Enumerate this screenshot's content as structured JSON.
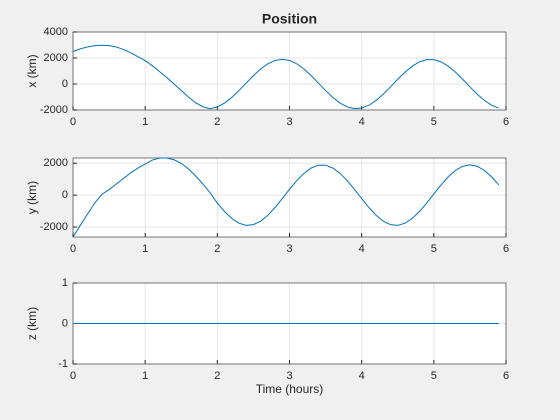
{
  "chart_data": [
    {
      "type": "line",
      "title": "Position",
      "ylabel": "x (km)",
      "color": "#0072bd",
      "grid": true,
      "xlim": [
        0,
        6
      ],
      "xticks": [
        0,
        1,
        2,
        3,
        4,
        5,
        6
      ],
      "ylim": [
        -2000,
        4000
      ],
      "yticks": [
        -2000,
        0,
        2000,
        4000
      ],
      "x": [
        0,
        0.1,
        0.2,
        0.3,
        0.4,
        0.5,
        0.6,
        0.7,
        0.8,
        0.9,
        1,
        1.1,
        1.2,
        1.3,
        1.4,
        1.5,
        1.6,
        1.7,
        1.8,
        1.9,
        2,
        2.1,
        2.2,
        2.3,
        2.4,
        2.5,
        2.6,
        2.7,
        2.8,
        2.9,
        3,
        3.1,
        3.2,
        3.3,
        3.4,
        3.5,
        3.6,
        3.7,
        3.8,
        3.9,
        4,
        4.1,
        4.2,
        4.3,
        4.4,
        4.5,
        4.6,
        4.7,
        4.8,
        4.9,
        5,
        5.1,
        5.2,
        5.3,
        5.4,
        5.5,
        5.6,
        5.7,
        5.8,
        5.9
      ],
      "values": [
        2500,
        2700,
        2850,
        2950,
        2980,
        2950,
        2850,
        2650,
        2400,
        2100,
        1800,
        1400,
        950,
        500,
        0,
        -500,
        -1000,
        -1450,
        -1750,
        -1900,
        -1762,
        -1467,
        -1032,
        -504,
        73,
        643,
        1152,
        1555,
        1811,
        1900,
        1811,
        1555,
        1152,
        643,
        73,
        -504,
        -1032,
        -1467,
        -1762,
        -1894,
        -1850,
        -1634,
        -1263,
        -776,
        -218,
        363,
        906,
        1369,
        1703,
        1878,
        1878,
        1703,
        1369,
        910,
        363,
        -215,
        -776,
        -1262,
        -1632,
        -1849
      ]
    },
    {
      "type": "line",
      "ylabel": "y (km)",
      "color": "#0072bd",
      "grid": true,
      "xlim": [
        0,
        6
      ],
      "xticks": [
        0,
        1,
        2,
        3,
        4,
        5,
        6
      ],
      "ylim": [
        -2625,
        2330
      ],
      "yticks": [
        -2000,
        0,
        2000
      ],
      "x": [
        0,
        0.1,
        0.2,
        0.3,
        0.4,
        0.5,
        0.6,
        0.7,
        0.8,
        0.9,
        1,
        1.1,
        1.2,
        1.3,
        1.4,
        1.5,
        1.6,
        1.7,
        1.8,
        1.9,
        2,
        2.1,
        2.2,
        2.3,
        2.4,
        2.5,
        2.6,
        2.7,
        2.8,
        2.9,
        3,
        3.1,
        3.2,
        3.3,
        3.4,
        3.5,
        3.6,
        3.7,
        3.8,
        3.9,
        4,
        4.1,
        4.2,
        4.3,
        4.4,
        4.5,
        4.6,
        4.7,
        4.8,
        4.9,
        5,
        5.1,
        5.2,
        5.3,
        5.4,
        5.5,
        5.6,
        5.7,
        5.8,
        5.9
      ],
      "values": [
        -2625,
        -1900,
        -1200,
        -500,
        50,
        350,
        700,
        1050,
        1400,
        1700,
        1950,
        2200,
        2330,
        2330,
        2220,
        2000,
        1650,
        1200,
        700,
        150,
        -505,
        -1034,
        -1466,
        -1761,
        -1894,
        -1850,
        -1634,
        -1264,
        -776,
        -218,
        363,
        906,
        1369,
        1703,
        1878,
        1878,
        1703,
        1369,
        906,
        363,
        -218,
        -776,
        -1264,
        -1634,
        -1850,
        -1894,
        -1761,
        -1466,
        -1034,
        -505,
        73,
        643,
        1152,
        1555,
        1811,
        1900,
        1811,
        1555,
        1152,
        643
      ]
    },
    {
      "type": "line",
      "ylabel": "z (km)",
      "xlabel": "Time (hours)",
      "color": "#0072bd",
      "grid": true,
      "xlim": [
        0,
        6
      ],
      "xticks": [
        0,
        1,
        2,
        3,
        4,
        5,
        6
      ],
      "ylim": [
        -1,
        1
      ],
      "yticks": [
        -1,
        0,
        1
      ],
      "x": [
        0,
        0.1,
        0.2,
        0.3,
        0.4,
        0.5,
        0.6,
        0.7,
        0.8,
        0.9,
        1,
        1.1,
        1.2,
        1.3,
        1.4,
        1.5,
        1.6,
        1.7,
        1.8,
        1.9,
        2,
        2.1,
        2.2,
        2.3,
        2.4,
        2.5,
        2.6,
        2.7,
        2.8,
        2.9,
        3,
        3.1,
        3.2,
        3.3,
        3.4,
        3.5,
        3.6,
        3.7,
        3.8,
        3.9,
        4,
        4.1,
        4.2,
        4.3,
        4.4,
        4.5,
        4.6,
        4.7,
        4.8,
        4.9,
        5,
        5.1,
        5.2,
        5.3,
        5.4,
        5.5,
        5.6,
        5.7,
        5.8,
        5.9
      ],
      "values": [
        0,
        0,
        0,
        0,
        0,
        0,
        0,
        0,
        0,
        0,
        0,
        0,
        0,
        0,
        0,
        0,
        0,
        0,
        0,
        0,
        0,
        0,
        0,
        0,
        0,
        0,
        0,
        0,
        0,
        0,
        0,
        0,
        0,
        0,
        0,
        0,
        0,
        0,
        0,
        0,
        0,
        0,
        0,
        0,
        0,
        0,
        0,
        0,
        0,
        0,
        0,
        0,
        0,
        0,
        0,
        0,
        0,
        0,
        0,
        0
      ]
    }
  ]
}
